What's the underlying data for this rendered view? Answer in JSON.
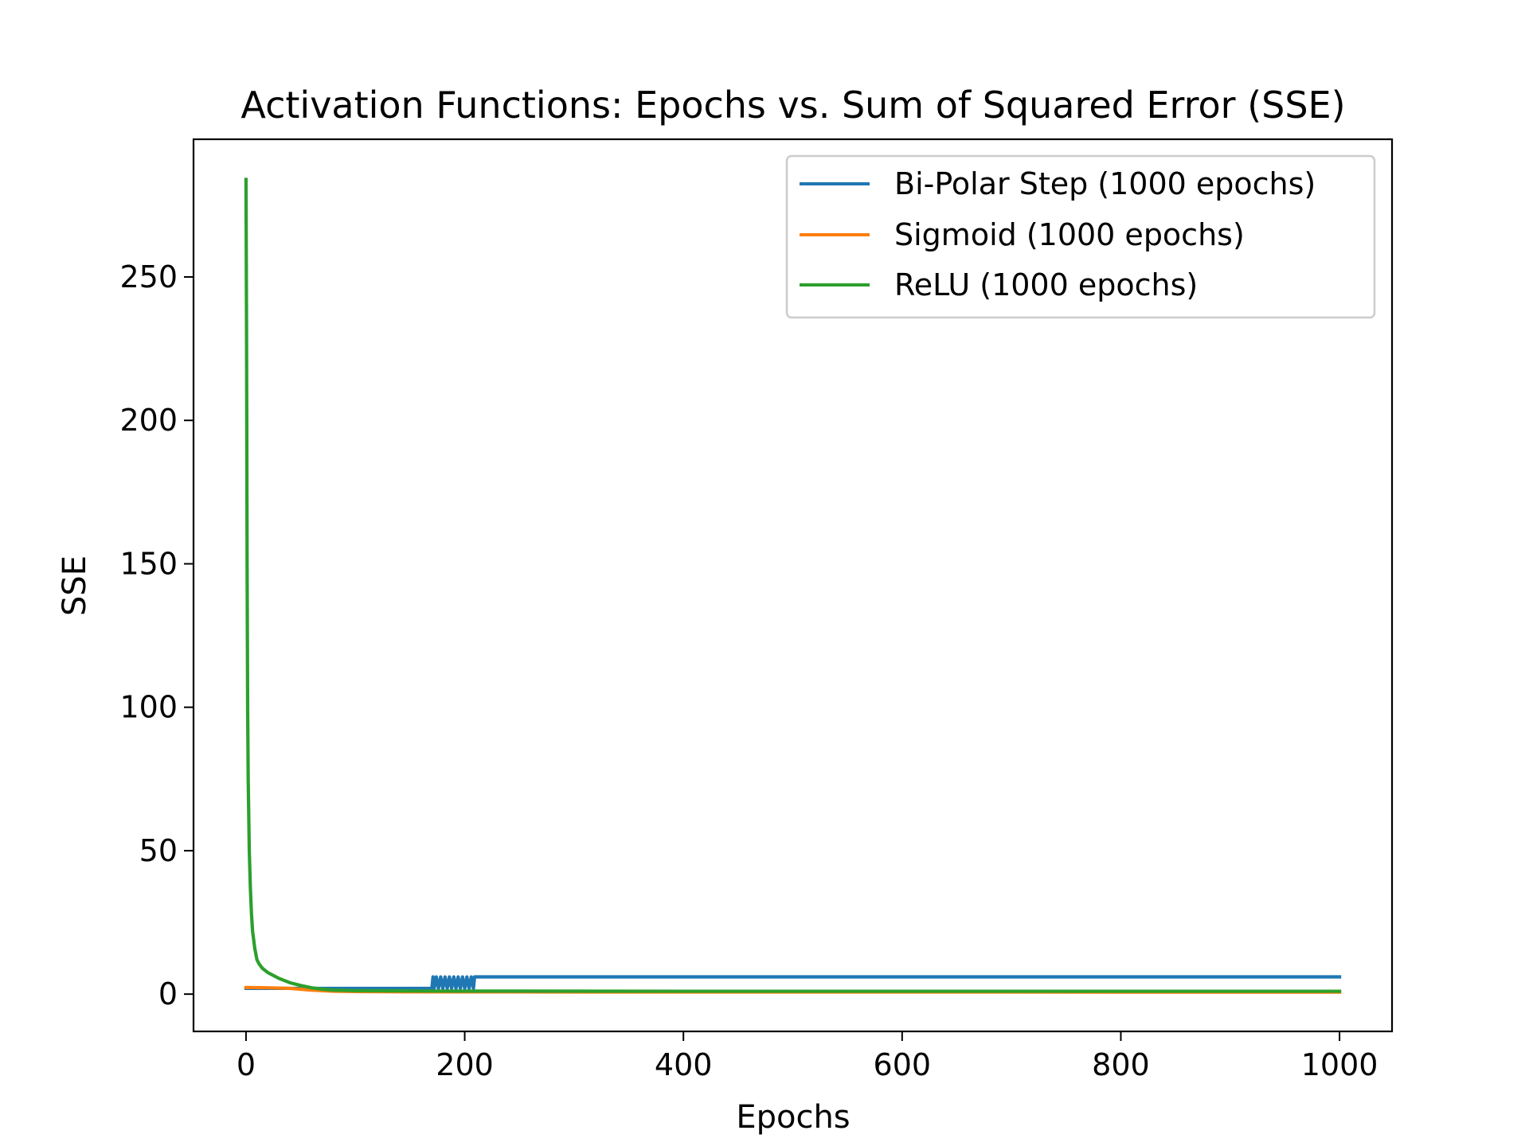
{
  "chart_data": {
    "type": "line",
    "title": "Activation Functions: Epochs vs. Sum of Squared Error (SSE)",
    "xlabel": "Epochs",
    "ylabel": "SSE",
    "xlim": [
      -48,
      1048
    ],
    "ylim": [
      -13,
      298
    ],
    "xticks": [
      0,
      200,
      400,
      600,
      800,
      1000
    ],
    "yticks": [
      0,
      50,
      100,
      150,
      200,
      250
    ],
    "grid": false,
    "legend_position": "top-right",
    "series": [
      {
        "name": "Bi-Polar Step (1000 epochs)",
        "color": "#1f77b4",
        "points": [
          [
            0,
            2
          ],
          [
            170,
            2
          ],
          [
            171,
            6
          ],
          [
            172,
            2
          ],
          [
            174,
            6
          ],
          [
            176,
            2
          ],
          [
            178,
            6
          ],
          [
            180,
            2
          ],
          [
            182,
            6
          ],
          [
            184,
            2
          ],
          [
            186,
            6
          ],
          [
            188,
            2
          ],
          [
            190,
            6
          ],
          [
            192,
            2
          ],
          [
            194,
            6
          ],
          [
            196,
            2
          ],
          [
            198,
            6
          ],
          [
            200,
            2
          ],
          [
            202,
            6
          ],
          [
            204,
            2
          ],
          [
            206,
            6
          ],
          [
            208,
            2
          ],
          [
            209,
            6
          ],
          [
            1000,
            6
          ]
        ]
      },
      {
        "name": "Sigmoid (1000 epochs)",
        "color": "#ff7f0e",
        "points": [
          [
            0,
            2.3
          ],
          [
            20,
            2.2
          ],
          [
            40,
            2.0
          ],
          [
            60,
            1.4
          ],
          [
            80,
            1.0
          ],
          [
            100,
            0.9
          ],
          [
            150,
            0.8
          ],
          [
            200,
            0.75
          ],
          [
            400,
            0.72
          ],
          [
            1000,
            0.7
          ]
        ]
      },
      {
        "name": "ReLU (1000 epochs)",
        "color": "#2ca02c",
        "points": [
          [
            0,
            284
          ],
          [
            0.5,
            230
          ],
          [
            1,
            150
          ],
          [
            1.5,
            100
          ],
          [
            2,
            75
          ],
          [
            3,
            50
          ],
          [
            4,
            37
          ],
          [
            5,
            28
          ],
          [
            6,
            22
          ],
          [
            8,
            16
          ],
          [
            10,
            12
          ],
          [
            12,
            10.5
          ],
          [
            15,
            9
          ],
          [
            20,
            7.5
          ],
          [
            30,
            5.5
          ],
          [
            40,
            4
          ],
          [
            50,
            3
          ],
          [
            60,
            2.2
          ],
          [
            70,
            1.7
          ],
          [
            80,
            1.4
          ],
          [
            100,
            1.2
          ],
          [
            150,
            1.1
          ],
          [
            200,
            1.05
          ],
          [
            400,
            1.0
          ],
          [
            1000,
            1.0
          ]
        ]
      }
    ]
  }
}
